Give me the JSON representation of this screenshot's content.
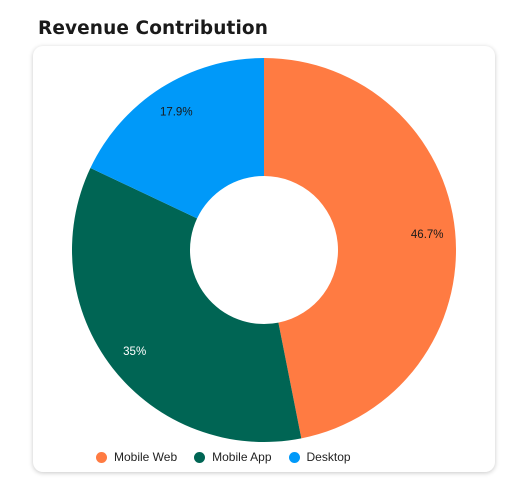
{
  "title": "Revenue Contribution",
  "chart_data": {
    "type": "pie",
    "variant": "donut",
    "title": "Revenue Contribution",
    "legend_position": "bottom",
    "slices": [
      {
        "name": "Mobile Web",
        "label": "46.7%",
        "value": 46.7,
        "color": "#ff7b42"
      },
      {
        "name": "Mobile App",
        "label": "35%",
        "value": 35,
        "color": "#006554"
      },
      {
        "name": "Desktop",
        "label": "17.9%",
        "value": 17.9,
        "color": "#0099f9"
      }
    ]
  }
}
